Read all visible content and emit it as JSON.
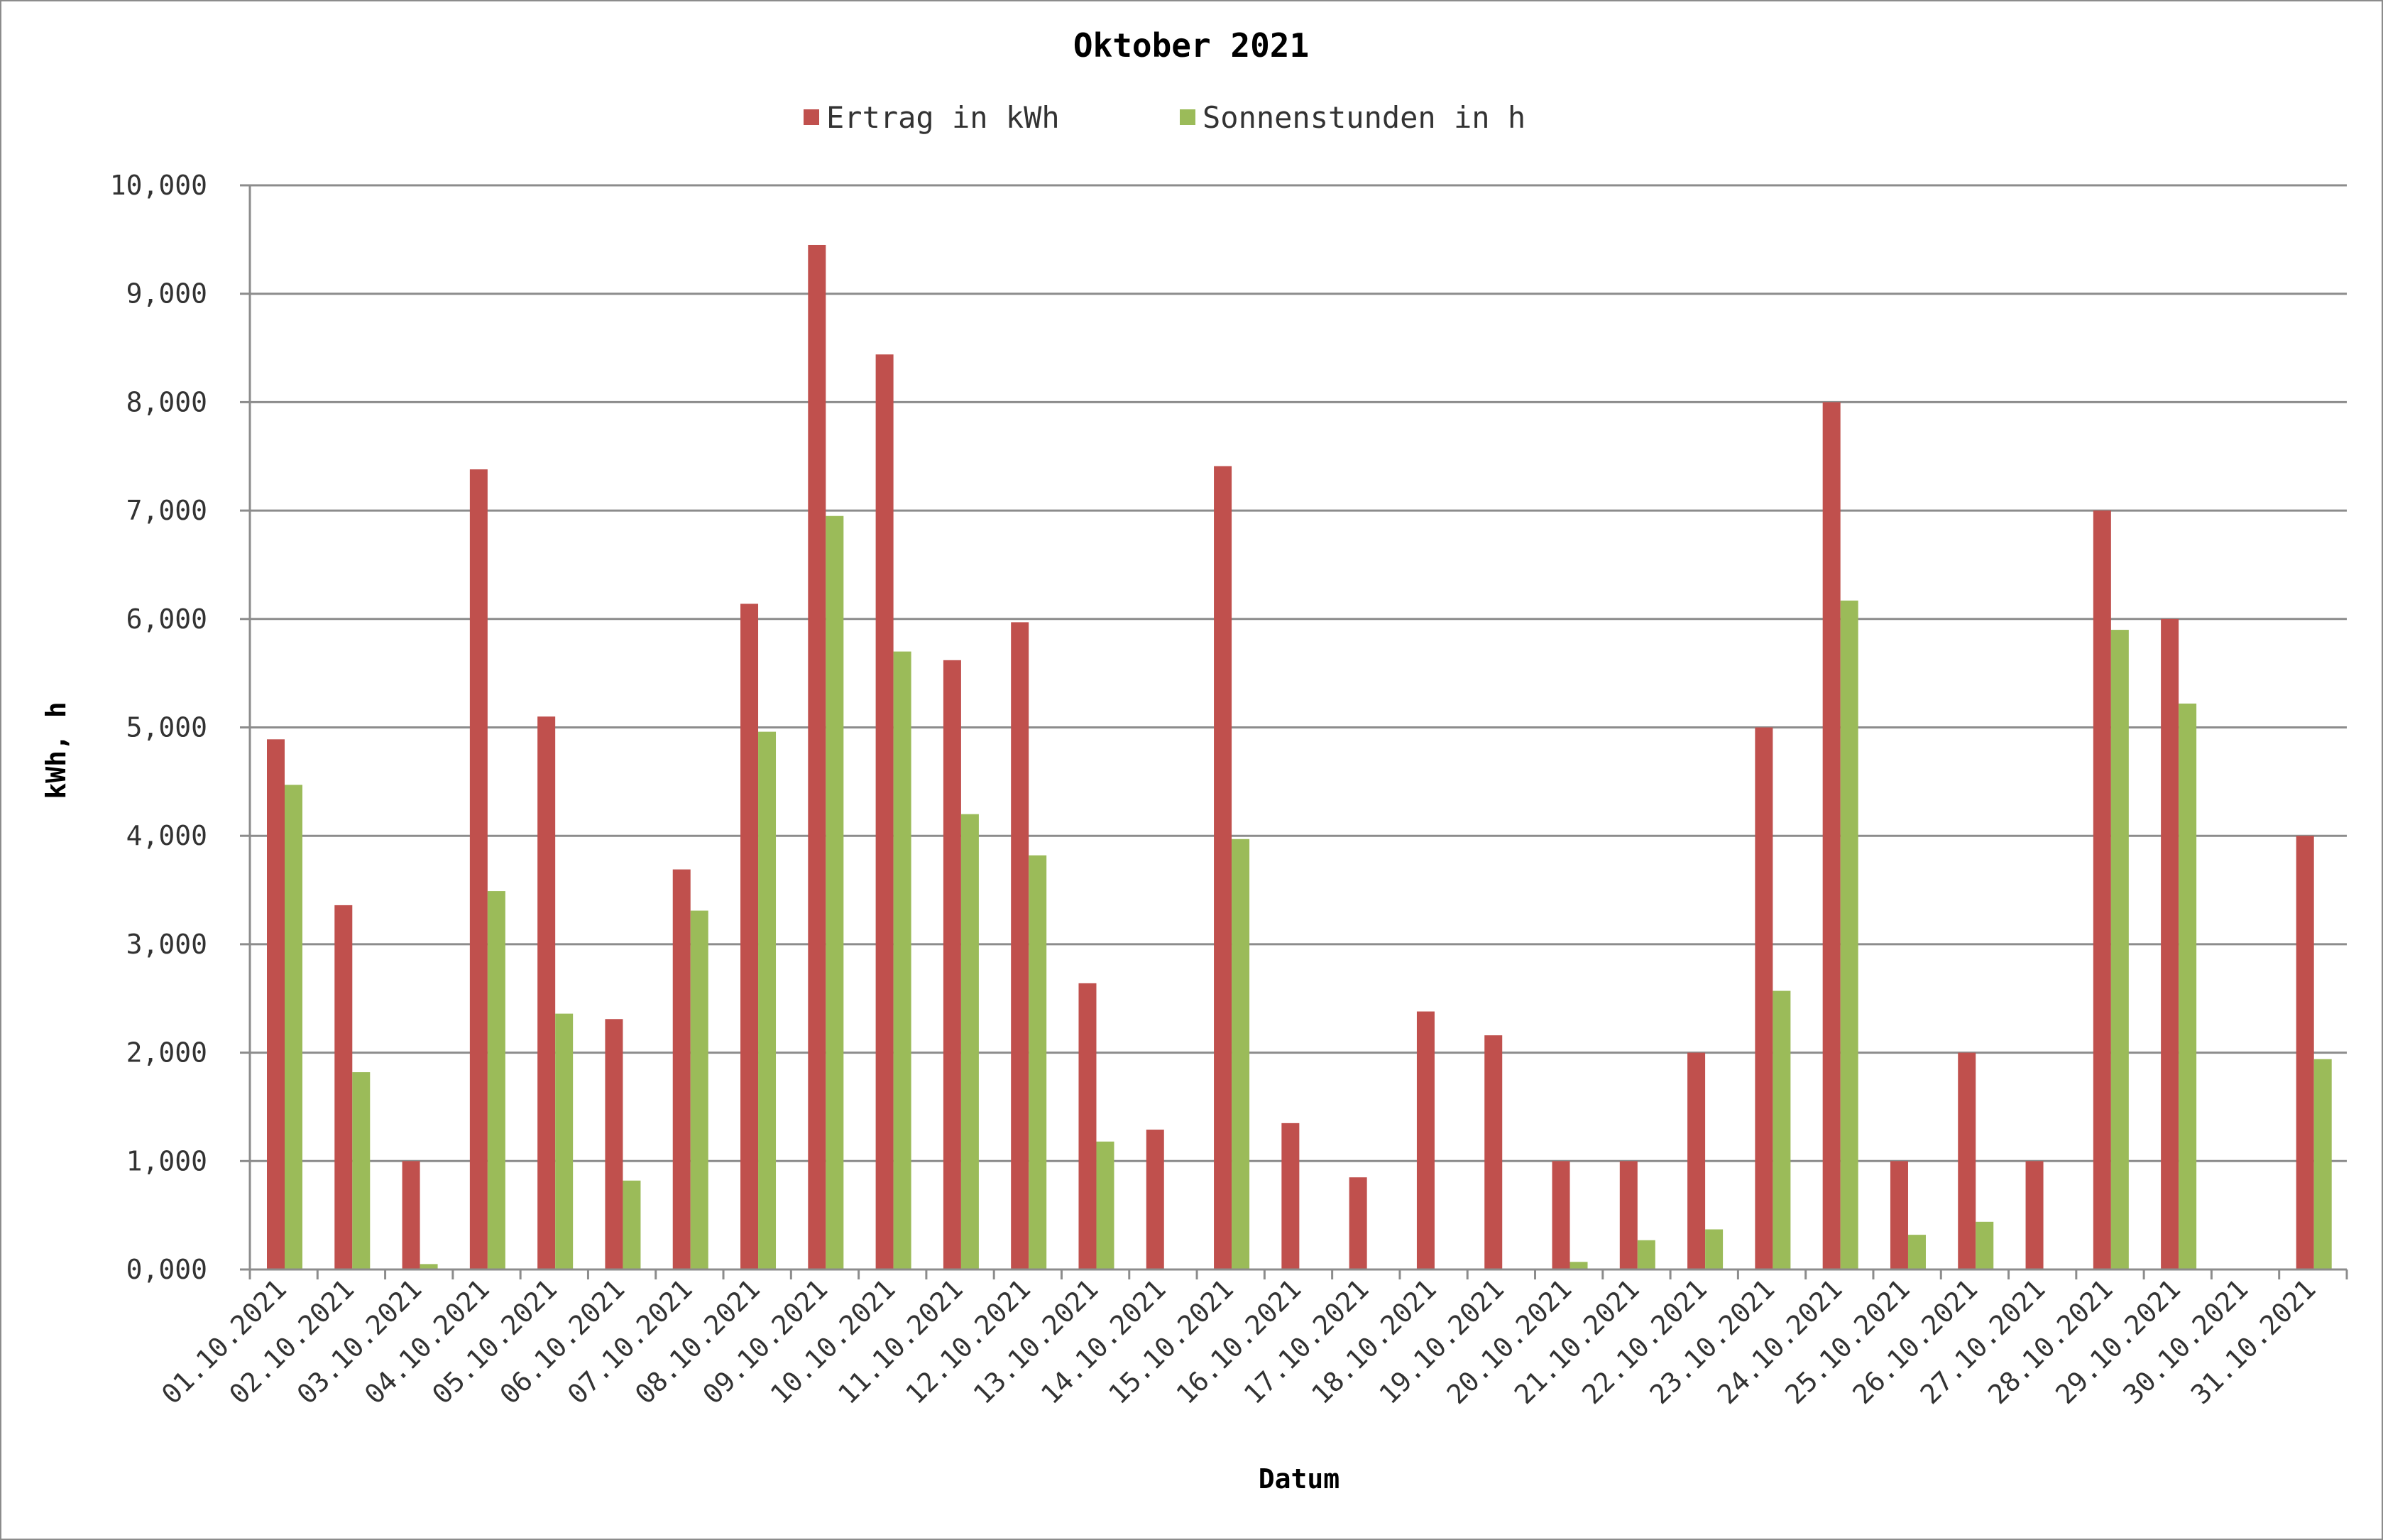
{
  "chart_data": {
    "type": "bar",
    "title": "Oktober 2021",
    "xlabel": "Datum",
    "ylabel": "kWh, h",
    "ylim": [
      0,
      10
    ],
    "yticks": [
      "0,000",
      "1,000",
      "2,000",
      "3,000",
      "4,000",
      "5,000",
      "6,000",
      "7,000",
      "8,000",
      "9,000",
      "10,000"
    ],
    "grid": true,
    "legend_position": "top",
    "categories": [
      "01.10.2021",
      "02.10.2021",
      "03.10.2021",
      "04.10.2021",
      "05.10.2021",
      "06.10.2021",
      "07.10.2021",
      "08.10.2021",
      "09.10.2021",
      "10.10.2021",
      "11.10.2021",
      "12.10.2021",
      "13.10.2021",
      "14.10.2021",
      "15.10.2021",
      "16.10.2021",
      "17.10.2021",
      "18.10.2021",
      "19.10.2021",
      "20.10.2021",
      "21.10.2021",
      "22.10.2021",
      "23.10.2021",
      "24.10.2021",
      "25.10.2021",
      "26.10.2021",
      "27.10.2021",
      "28.10.2021",
      "29.10.2021",
      "30.10.2021",
      "31.10.2021"
    ],
    "series": [
      {
        "name": "Ertrag in kWh",
        "color": "#c0504d",
        "values": [
          4.89,
          3.36,
          1.0,
          7.38,
          5.1,
          2.31,
          3.69,
          6.14,
          9.45,
          8.44,
          5.62,
          5.97,
          2.64,
          1.29,
          7.41,
          1.35,
          0.85,
          2.38,
          2.16,
          1.0,
          1.0,
          2.0,
          5.0,
          8.0,
          1.0,
          2.0,
          1.0,
          7.0,
          6.0,
          0.0,
          4.0
        ]
      },
      {
        "name": "Sonnenstunden in h",
        "color": "#9bbb59",
        "values": [
          4.47,
          1.82,
          0.05,
          3.49,
          2.36,
          0.82,
          3.31,
          4.96,
          6.95,
          5.7,
          4.2,
          3.82,
          1.18,
          0.0,
          3.97,
          0.0,
          0.0,
          0.0,
          0.0,
          0.07,
          0.27,
          0.37,
          2.57,
          6.17,
          0.32,
          0.44,
          0.0,
          5.9,
          5.22,
          0.0,
          1.94
        ]
      }
    ]
  }
}
